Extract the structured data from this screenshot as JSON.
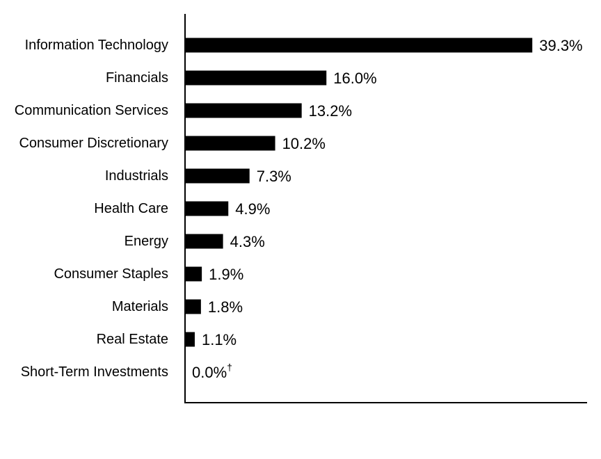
{
  "chart_data": {
    "type": "bar",
    "orientation": "horizontal",
    "categories": [
      "Information Technology",
      "Financials",
      "Communication Services",
      "Consumer Discretionary",
      "Industrials",
      "Health Care",
      "Energy",
      "Consumer Staples",
      "Materials",
      "Real Estate",
      "Short-Term Investments"
    ],
    "values": [
      39.3,
      16.0,
      13.2,
      10.2,
      7.3,
      4.9,
      4.3,
      1.9,
      1.8,
      1.1,
      0.0
    ],
    "value_labels": [
      "39.3%",
      "16.0%",
      "13.2%",
      "10.2%",
      "7.3%",
      "4.9%",
      "4.3%",
      "1.9%",
      "1.8%",
      "1.1%",
      "0.0%"
    ],
    "value_label_suffixes": [
      "",
      "",
      "",
      "",
      "",
      "",
      "",
      "",
      "",
      "",
      "†"
    ],
    "title": "",
    "xlabel": "",
    "ylabel": "",
    "xlim": [
      0,
      45.5
    ],
    "grid": false,
    "legend": "none",
    "bar_color": "#000000",
    "axis_color": "#000000"
  }
}
